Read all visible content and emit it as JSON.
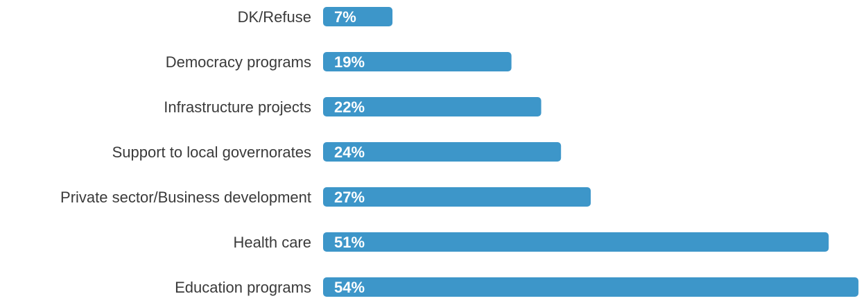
{
  "chart_data": {
    "type": "bar",
    "orientation": "horizontal",
    "categories": [
      "DK/Refuse",
      "Democracy programs",
      "Infrastructure projects",
      "Support to local governorates",
      "Private sector/Business development",
      "Health care",
      "Education programs"
    ],
    "values": [
      7,
      19,
      22,
      24,
      27,
      51,
      54
    ],
    "value_labels": [
      "7%",
      "19%",
      "22%",
      "24%",
      "27%",
      "51%",
      "54%"
    ],
    "unit": "%",
    "bar_color": "#3d96c9",
    "grid": false,
    "legend": "none"
  }
}
